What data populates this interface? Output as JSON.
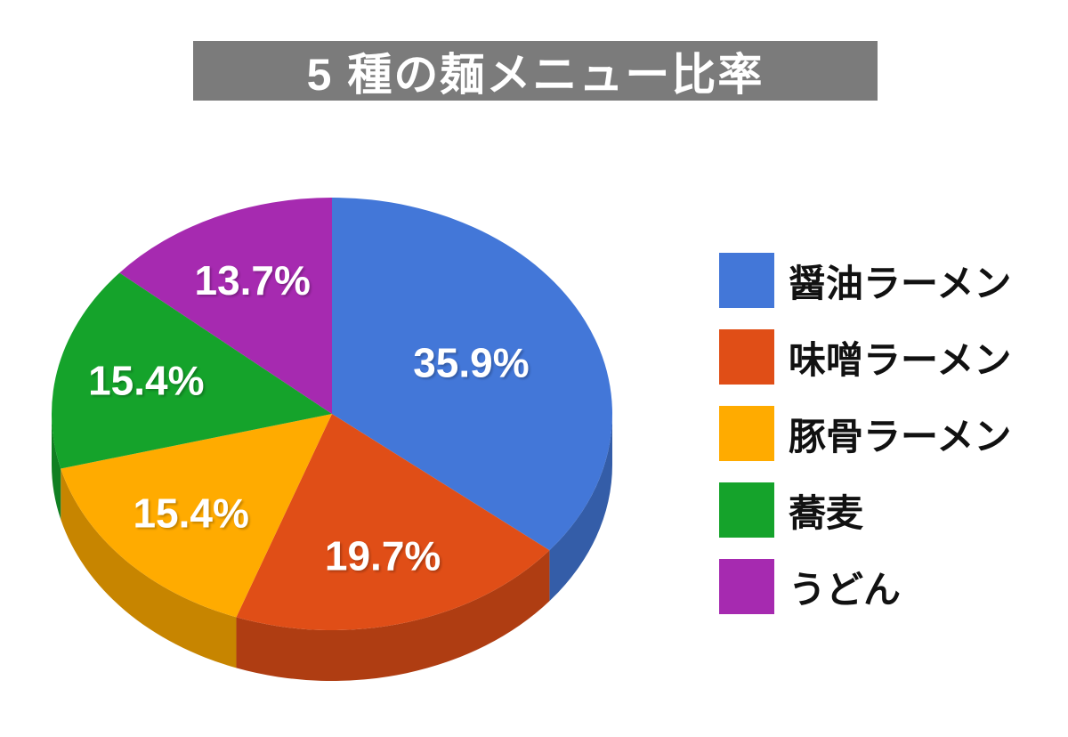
{
  "page": {
    "background_color": "#ffffff"
  },
  "title_banner": {
    "background_color": "#7b7b7b",
    "text_color": "#ffffff"
  },
  "chart_data": {
    "type": "pie",
    "style": "3d",
    "title": "5 種の麺メニュー比率",
    "start_angle_deg": 0,
    "direction": "clockwise",
    "legend_position": "right",
    "slices": [
      {
        "label": "醤油ラーメン",
        "value_pct": 35.9,
        "color": "#4377d8"
      },
      {
        "label": "味噌ラーメン",
        "value_pct": 19.7,
        "color": "#e04e17"
      },
      {
        "label": "豚骨ラーメン",
        "value_pct": 15.4,
        "color": "#ffab00"
      },
      {
        "label": "蕎麦",
        "value_pct": 15.4,
        "color": "#15a32b"
      },
      {
        "label": "うどん",
        "value_pct": 13.7,
        "color": "#a62ab0"
      }
    ],
    "data_labels": [
      "35.9%",
      "19.7%",
      "15.4%",
      "15.4%",
      "13.7%"
    ],
    "data_label_color": "#ffffff"
  }
}
